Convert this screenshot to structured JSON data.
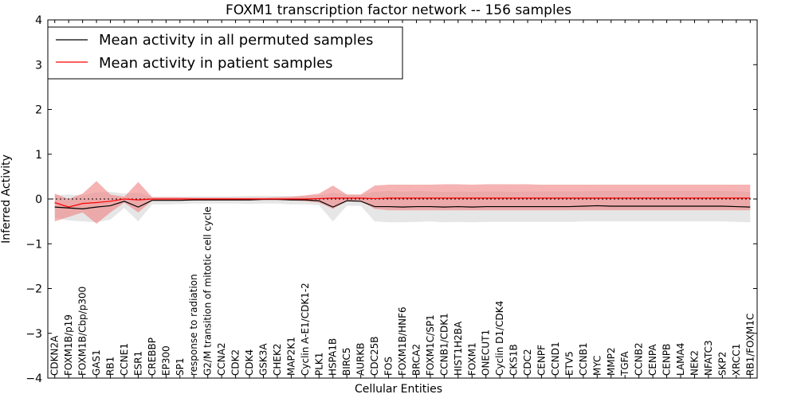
{
  "chart_data": {
    "type": "line",
    "title": "FOXM1 transcription factor network -- 156 samples",
    "xlabel": "Cellular Entities",
    "ylabel": "Inferred Activity",
    "ylim": [
      -4,
      4
    ],
    "yticks": [
      -4,
      -3,
      -2,
      -1,
      0,
      1,
      2,
      3,
      4
    ],
    "ytick_labels": [
      "−4",
      "−3",
      "−2",
      "−1",
      "0",
      "1",
      "2",
      "3",
      "4"
    ],
    "categories": [
      "CDKN2A",
      "FOXM1B/p19",
      "FOXM1B/Cbp/p300",
      "GAS1",
      "RB1",
      "CCNE1",
      "ESR1",
      "CREBBP",
      "EP300",
      "SP1",
      "response to radiation",
      "G2/M transition of mitotic cell cycle",
      "CCNA2",
      "CDK2",
      "CDK4",
      "GSK3A",
      "CHEK2",
      "MAP2K1",
      "Cyclin A-E1/CDK1-2",
      "PLK1",
      "HSPA1B",
      "BIRC5",
      "AURKB",
      "CDC25B",
      "FOS",
      "FOXM1B/HNF6",
      "BRCA2",
      "FOXM1C/SP1",
      "CCNB1/CDK1",
      "HIST1H2BA",
      "FOXM1",
      "ONECUT1",
      "Cyclin D1/CDK4",
      "CKS1B",
      "CDC2",
      "CENPF",
      "CCND1",
      "ETV5",
      "CCNB1",
      "MYC",
      "MMP2",
      "TGFA",
      "CCNB2",
      "CENPA",
      "CENPB",
      "LAMA4",
      "NEK2",
      "NFATC3",
      "SKP2",
      "XRCC1",
      "RB1/FOXM1C"
    ],
    "legend_position": "top-left",
    "reference_line": 0,
    "series": [
      {
        "name": "Mean activity in all permuted samples",
        "color": "#000000",
        "band_color": "#c8c8c8",
        "values": [
          -0.18,
          -0.2,
          -0.22,
          -0.18,
          -0.15,
          -0.05,
          -0.18,
          -0.03,
          -0.03,
          -0.03,
          -0.02,
          -0.02,
          -0.02,
          -0.02,
          -0.02,
          -0.01,
          -0.01,
          -0.02,
          -0.02,
          -0.04,
          -0.18,
          -0.04,
          -0.05,
          -0.17,
          -0.17,
          -0.18,
          -0.17,
          -0.17,
          -0.18,
          -0.17,
          -0.18,
          -0.17,
          -0.17,
          -0.17,
          -0.17,
          -0.17,
          -0.17,
          -0.17,
          -0.16,
          -0.15,
          -0.16,
          -0.16,
          -0.16,
          -0.16,
          -0.16,
          -0.16,
          -0.16,
          -0.16,
          -0.16,
          -0.17,
          -0.18
        ],
        "lower": [
          -0.42,
          -0.48,
          -0.5,
          -0.52,
          -0.46,
          -0.2,
          -0.5,
          -0.12,
          -0.12,
          -0.11,
          -0.1,
          -0.1,
          -0.1,
          -0.1,
          -0.11,
          -0.1,
          -0.1,
          -0.12,
          -0.12,
          -0.14,
          -0.5,
          -0.15,
          -0.15,
          -0.5,
          -0.52,
          -0.52,
          -0.51,
          -0.5,
          -0.52,
          -0.51,
          -0.52,
          -0.51,
          -0.51,
          -0.51,
          -0.51,
          -0.51,
          -0.51,
          -0.51,
          -0.5,
          -0.5,
          -0.5,
          -0.5,
          -0.5,
          -0.5,
          -0.5,
          -0.5,
          -0.5,
          -0.5,
          -0.5,
          -0.51,
          -0.52
        ],
        "upper": [
          0.08,
          0.1,
          0.08,
          0.15,
          0.16,
          0.12,
          0.14,
          0.05,
          0.05,
          0.05,
          0.06,
          0.06,
          0.06,
          0.06,
          0.07,
          0.07,
          0.07,
          0.07,
          0.07,
          0.08,
          0.14,
          0.1,
          0.09,
          0.16,
          0.18,
          0.16,
          0.18,
          0.17,
          0.16,
          0.17,
          0.16,
          0.17,
          0.17,
          0.16,
          0.17,
          0.17,
          0.17,
          0.17,
          0.17,
          0.18,
          0.18,
          0.18,
          0.18,
          0.18,
          0.18,
          0.18,
          0.18,
          0.18,
          0.18,
          0.17,
          0.16
        ]
      },
      {
        "name": "Mean activity in patient samples",
        "color": "#ff0000",
        "band_color": "#f08080",
        "values": [
          -0.08,
          -0.18,
          -0.1,
          -0.08,
          -0.05,
          0.0,
          -0.02,
          0.0,
          0.0,
          0.0,
          0.0,
          0.0,
          0.0,
          0.0,
          0.0,
          0.0,
          0.0,
          0.0,
          0.0,
          0.01,
          0.02,
          0.02,
          0.02,
          0.01,
          0.02,
          0.02,
          0.02,
          0.02,
          0.02,
          0.02,
          0.02,
          0.02,
          0.02,
          0.02,
          0.02,
          0.02,
          0.02,
          0.02,
          0.02,
          0.02,
          0.02,
          0.02,
          0.02,
          0.02,
          0.02,
          0.02,
          0.02,
          0.02,
          0.02,
          0.02,
          0.02
        ],
        "lower": [
          -0.5,
          -0.4,
          -0.3,
          -0.55,
          -0.3,
          -0.08,
          -0.3,
          -0.04,
          -0.04,
          -0.04,
          -0.03,
          -0.03,
          -0.03,
          -0.03,
          -0.03,
          -0.02,
          -0.02,
          -0.03,
          -0.05,
          -0.08,
          -0.22,
          -0.05,
          -0.05,
          -0.22,
          -0.25,
          -0.25,
          -0.25,
          -0.25,
          -0.25,
          -0.25,
          -0.25,
          -0.25,
          -0.25,
          -0.25,
          -0.25,
          -0.25,
          -0.25,
          -0.25,
          -0.25,
          -0.25,
          -0.25,
          -0.25,
          -0.25,
          -0.25,
          -0.25,
          -0.25,
          -0.25,
          -0.25,
          -0.25,
          -0.25,
          -0.25
        ],
        "upper": [
          0.12,
          0.0,
          0.12,
          0.4,
          0.1,
          0.05,
          0.38,
          0.04,
          0.04,
          0.04,
          0.03,
          0.03,
          0.03,
          0.03,
          0.03,
          0.03,
          0.04,
          0.05,
          0.08,
          0.12,
          0.3,
          0.1,
          0.1,
          0.3,
          0.32,
          0.32,
          0.32,
          0.32,
          0.33,
          0.33,
          0.32,
          0.33,
          0.33,
          0.33,
          0.33,
          0.32,
          0.32,
          0.32,
          0.32,
          0.32,
          0.32,
          0.32,
          0.32,
          0.32,
          0.32,
          0.32,
          0.32,
          0.32,
          0.32,
          0.32,
          0.32
        ]
      }
    ]
  }
}
